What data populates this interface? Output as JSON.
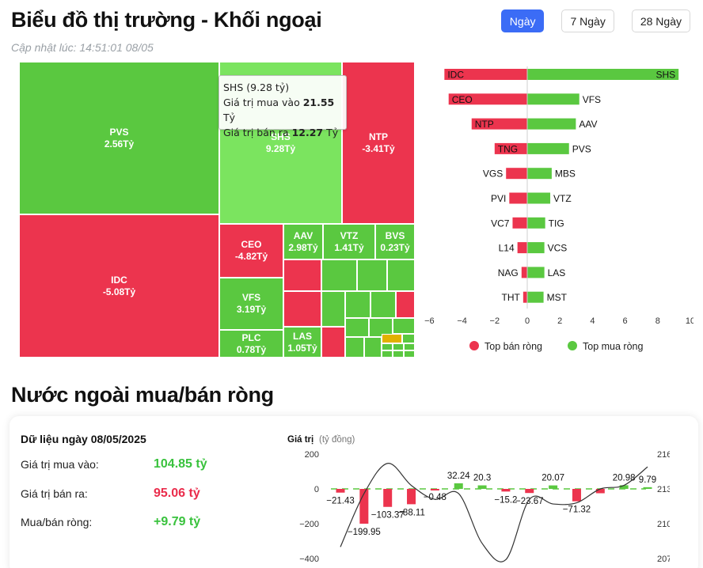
{
  "header": {
    "title": "Biểu đồ thị trường - Khối ngoại",
    "updated": "Cập nhật lúc: 14:51:01 08/05",
    "tabs": [
      {
        "label": "Ngày",
        "active": true
      },
      {
        "label": "7 Ngày",
        "active": false
      },
      {
        "label": "28 Ngày",
        "active": false
      }
    ]
  },
  "colors": {
    "buy": "#5ac840",
    "buy_light": "#7be45f",
    "sell": "#ec344e",
    "accent": "#3b6cf6"
  },
  "treemap": {
    "cells": [
      {
        "name": "PVS",
        "value": "2.56Tỷ"
      },
      {
        "name": "SHS",
        "value": "9.28Tỷ"
      },
      {
        "name": "NTP",
        "value": "-3.41Tỷ"
      },
      {
        "name": "IDC",
        "value": "-5.08Tỷ"
      },
      {
        "name": "CEO",
        "value": "-4.82Tỷ"
      },
      {
        "name": "AAV",
        "value": "2.98Tỷ"
      },
      {
        "name": "VTZ",
        "value": "1.41Tỷ"
      },
      {
        "name": "BVS",
        "value": "0.23Tỷ"
      },
      {
        "name": "VFS",
        "value": "3.19Tỷ"
      },
      {
        "name": "PLC",
        "value": "0.78Tỷ"
      },
      {
        "name": "LAS",
        "value": "1.05Tỷ"
      }
    ],
    "tooltip": {
      "title": "SHS (9.28 tỷ)",
      "buy_label": "Giá trị mua vào",
      "buy_value": "21.55",
      "sell_label": "Giá trị bán ra",
      "sell_value": "12.27",
      "unit": "Tỷ"
    }
  },
  "chart_data": [
    {
      "type": "bar",
      "orientation": "horizontal",
      "sell_series": {
        "name": "Top bán ròng",
        "labels": [
          "IDC",
          "CEO",
          "NTP",
          "TNG",
          "VGS",
          "PVI",
          "VC7",
          "L14",
          "NAG",
          "THT"
        ],
        "values": [
          -5.08,
          -4.82,
          -3.41,
          -2.0,
          -1.3,
          -1.1,
          -0.9,
          -0.6,
          -0.35,
          -0.25
        ]
      },
      "buy_series": {
        "name": "Top mua ròng",
        "labels": [
          "SHS",
          "VFS",
          "AAV",
          "PVS",
          "MBS",
          "VTZ",
          "TIG",
          "VCS",
          "LAS",
          "MST"
        ],
        "values": [
          9.28,
          3.19,
          2.98,
          2.56,
          1.5,
          1.41,
          1.1,
          1.05,
          1.05,
          1.0
        ]
      },
      "xlim": [
        -6,
        10
      ],
      "xticks": [
        "−6",
        "−4",
        "−2",
        "0",
        "2",
        "4",
        "6",
        "8",
        "10"
      ],
      "legend": "bottom"
    },
    {
      "type": "bar+line",
      "ylabel": "Giá trị",
      "ylabel_unit": "(tỷ đồng)",
      "ylim": [
        -400,
        200
      ],
      "yticks": [
        "200",
        "0",
        "−200",
        "−400"
      ],
      "y2lim": [
        207,
        216
      ],
      "y2ticks": [
        "216",
        "213",
        "210",
        "207"
      ],
      "bars": [
        -21.43,
        -199.95,
        -103.37,
        -88.11,
        -0.48,
        32.24,
        20.3,
        -15.2,
        -23.67,
        20.07,
        -71.32,
        -25,
        20.98,
        9.79
      ],
      "bar_labels": [
        "−21.43",
        "−199.95",
        "−103.37",
        "−88.11",
        "−0.48",
        "32.24",
        "20.3",
        "−15.2",
        "−23.67",
        "20.07",
        "−71.32",
        "",
        "20.98",
        "9.79"
      ],
      "line": [
        208.0,
        212.6,
        215.2,
        213.3,
        212.1,
        212.6,
        208.3,
        206.9,
        212.1,
        211.7,
        211.8,
        213.0,
        213.3,
        214.9
      ]
    }
  ],
  "summary": {
    "date_label": "Dữ liệu ngày 08/05/2025",
    "section_title": "Nước ngoài mua/bán ròng",
    "rows": [
      {
        "label": "Giá trị mua vào:",
        "value": "104.85 tỷ"
      },
      {
        "label": "Giá trị bán ra:",
        "value": "95.06 tỷ"
      },
      {
        "label": "Mua/bán ròng:",
        "value": "+9.79 tỷ"
      }
    ]
  }
}
